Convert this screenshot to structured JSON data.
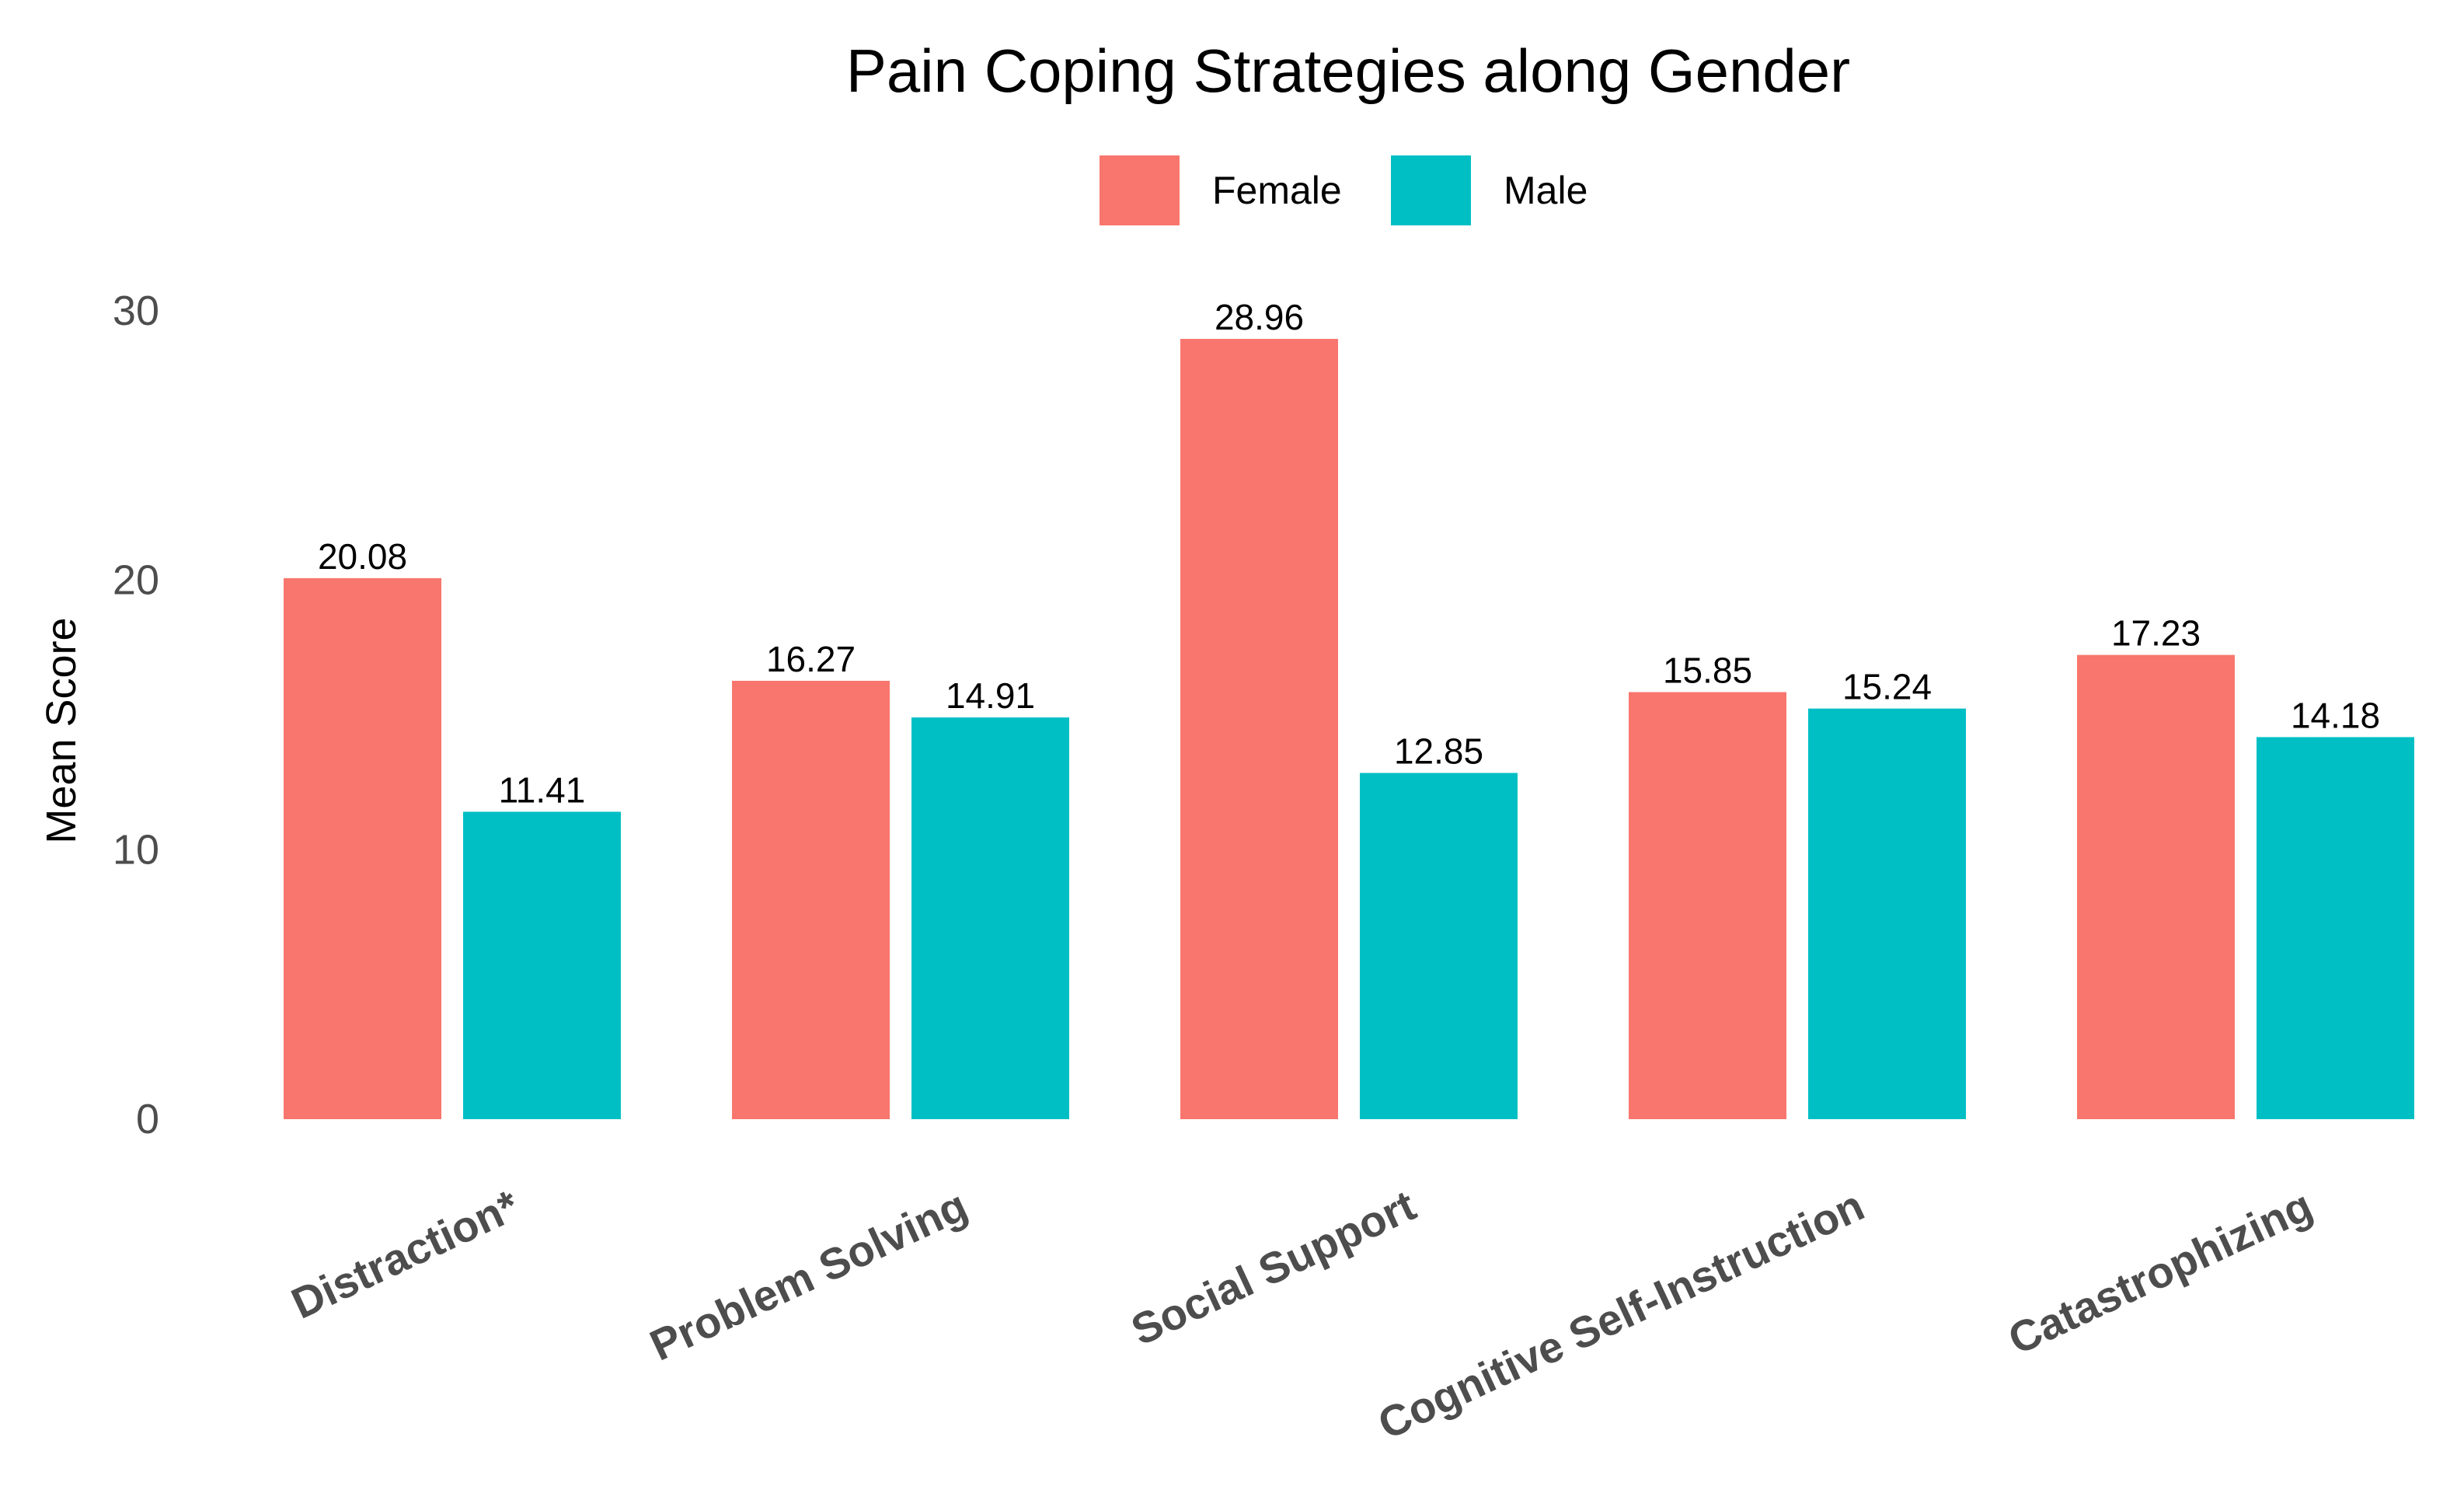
{
  "chart_data": {
    "type": "bar",
    "title": "Pain Coping Strategies along Gender",
    "xlabel": "",
    "ylabel": "Mean Score",
    "ylim": [
      0,
      30
    ],
    "yticks": [
      0,
      10,
      20,
      30
    ],
    "ytick_labels": [
      "0",
      "10",
      "20",
      "30"
    ],
    "grid": false,
    "legend_position": "top",
    "categories": [
      "Distraction*",
      "Problem Solving",
      "Social Support",
      "Cognitive Self-Instruction",
      "Catastrophizing"
    ],
    "series": [
      {
        "name": "Female",
        "color": "#F8766D",
        "values": [
          20.08,
          16.27,
          28.96,
          15.85,
          17.23
        ],
        "labels": [
          "20.08",
          "16.27",
          "28.96",
          "15.85",
          "17.23"
        ]
      },
      {
        "name": "Male",
        "color": "#00BFC4",
        "values": [
          11.41,
          14.91,
          12.85,
          15.24,
          14.18
        ],
        "labels": [
          "11.41",
          "14.91",
          "12.85",
          "15.24",
          "14.18"
        ]
      }
    ]
  }
}
